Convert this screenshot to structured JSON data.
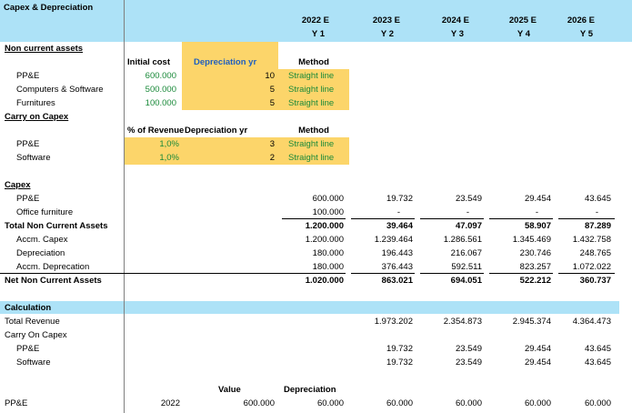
{
  "title": "Capex & Depreciation",
  "years": [
    {
      "year": "2022 E",
      "y": "Y 1"
    },
    {
      "year": "2023 E",
      "y": "Y 2"
    },
    {
      "year": "2024 E",
      "y": "Y 3"
    },
    {
      "year": "2025 E",
      "y": "Y 4"
    },
    {
      "year": "2026 E",
      "y": "Y 5"
    }
  ],
  "nca": {
    "heading": "Non current assets",
    "col_initial": "Initial cost",
    "col_dep": "Depreciation yr",
    "col_method": "Method",
    "rows": [
      {
        "label": "PP&E",
        "cost": "600.000",
        "years": "10",
        "method": "Straight line"
      },
      {
        "label": "Computers & Software",
        "cost": "500.000",
        "years": "5",
        "method": "Straight line"
      },
      {
        "label": "Furnitures",
        "cost": "100.000",
        "years": "5",
        "method": "Straight line"
      }
    ]
  },
  "carry": {
    "heading": "Carry on Capex",
    "col_pct": "% of Revenue",
    "col_dep": "Depreciation yr",
    "col_method": "Method",
    "rows": [
      {
        "label": "PP&E",
        "pct": "1,0%",
        "years": "3",
        "method": "Straight line"
      },
      {
        "label": "Software",
        "pct": "1,0%",
        "years": "2",
        "method": "Straight line"
      }
    ]
  },
  "capex": {
    "heading": "Capex",
    "rows": [
      {
        "label": "PP&E",
        "vals": [
          "600.000",
          "19.732",
          "23.549",
          "29.454",
          "43.645"
        ]
      },
      {
        "label": "Office furniture",
        "vals": [
          "100.000",
          "-",
          "-",
          "-",
          "-"
        ]
      },
      {
        "label": "Total Non Current Assets",
        "vals": [
          "1.200.000",
          "39.464",
          "47.097",
          "58.907",
          "87.289"
        ]
      },
      {
        "label": "Accm. Capex",
        "vals": [
          "1.200.000",
          "1.239.464",
          "1.286.561",
          "1.345.469",
          "1.432.758"
        ]
      },
      {
        "label": "Depreciation",
        "vals": [
          "180.000",
          "196.443",
          "216.067",
          "230.746",
          "248.765"
        ]
      },
      {
        "label": "Accm. Deprecation",
        "vals": [
          "180.000",
          "376.443",
          "592.511",
          "823.257",
          "1.072.022"
        ]
      },
      {
        "label": "Net Non Current Assets",
        "vals": [
          "1.020.000",
          "863.021",
          "694.051",
          "522.212",
          "360.737"
        ]
      }
    ]
  },
  "calc": {
    "heading": "Calculation",
    "total_revenue_label": "Total Revenue",
    "total_revenue": [
      "1.973.202",
      "2.354.873",
      "2.945.374",
      "4.364.473"
    ],
    "carry_label": "Carry On Capex",
    "carry_rows": [
      {
        "label": "PP&E",
        "vals": [
          "19.732",
          "23.549",
          "29.454",
          "43.645"
        ]
      },
      {
        "label": "Software",
        "vals": [
          "19.732",
          "23.549",
          "29.454",
          "43.645"
        ]
      }
    ]
  },
  "bottom": {
    "col_value": "Value",
    "col_dep": "Depreciation",
    "label": "PP&E",
    "year": "2022",
    "value": "600.000",
    "vals": [
      "60.000",
      "60.000",
      "60.000",
      "60.000",
      "60.000"
    ]
  }
}
